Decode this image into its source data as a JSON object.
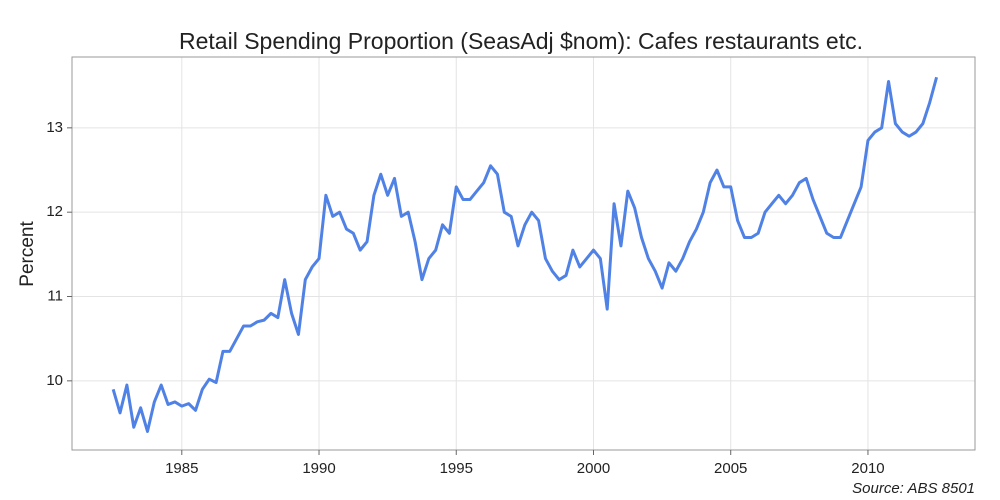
{
  "chart_data": {
    "type": "line",
    "title": "Retail Spending Proportion (SeasAdj $nom): Cafes restaurants etc.",
    "ylabel": "Percent",
    "caption": "Source: ABS 8501",
    "x": [
      1982.5,
      1982.75,
      1983,
      1983.25,
      1983.5,
      1983.75,
      1984,
      1984.25,
      1984.5,
      1984.75,
      1985,
      1985.25,
      1985.5,
      1985.75,
      1986,
      1986.25,
      1986.5,
      1986.75,
      1987,
      1987.25,
      1987.5,
      1987.75,
      1988,
      1988.25,
      1988.5,
      1988.75,
      1989,
      1989.25,
      1989.5,
      1989.75,
      1990,
      1990.25,
      1990.5,
      1990.75,
      1991,
      1991.25,
      1991.5,
      1991.75,
      1992,
      1992.25,
      1992.5,
      1992.75,
      1993,
      1993.25,
      1993.5,
      1993.75,
      1994,
      1994.25,
      1994.5,
      1994.75,
      1995,
      1995.25,
      1995.5,
      1995.75,
      1996,
      1996.25,
      1996.5,
      1996.75,
      1997,
      1997.25,
      1997.5,
      1997.75,
      1998,
      1998.25,
      1998.5,
      1998.75,
      1999,
      1999.25,
      1999.5,
      1999.75,
      2000,
      2000.25,
      2000.5,
      2000.75,
      2001,
      2001.25,
      2001.5,
      2001.75,
      2002,
      2002.25,
      2002.5,
      2002.75,
      2003,
      2003.25,
      2003.5,
      2003.75,
      2004,
      2004.25,
      2004.5,
      2004.75,
      2005,
      2005.25,
      2005.5,
      2005.75,
      2006,
      2006.25,
      2006.5,
      2006.75,
      2007,
      2007.25,
      2007.5,
      2007.75,
      2008,
      2008.25,
      2008.5,
      2008.75,
      2009,
      2009.25,
      2009.5,
      2009.75,
      2010,
      2010.25,
      2010.5,
      2010.75,
      2011,
      2011.25,
      2011.5,
      2011.75,
      2012,
      2012.25,
      2012.5
    ],
    "series": [
      {
        "name": "Cafes restaurants etc.",
        "color": "#5082e6",
        "values": [
          9.9,
          9.62,
          9.95,
          9.45,
          9.68,
          9.4,
          9.75,
          9.95,
          9.72,
          9.75,
          9.7,
          9.73,
          9.65,
          9.9,
          10.02,
          9.98,
          10.35,
          10.35,
          10.5,
          10.65,
          10.65,
          10.7,
          10.72,
          10.8,
          10.75,
          11.2,
          10.8,
          10.55,
          11.2,
          11.35,
          11.45,
          12.2,
          11.95,
          12.0,
          11.8,
          11.75,
          11.55,
          11.65,
          12.2,
          12.45,
          12.2,
          12.4,
          11.95,
          12.0,
          11.65,
          11.2,
          11.45,
          11.55,
          11.85,
          11.75,
          12.3,
          12.15,
          12.15,
          12.25,
          12.35,
          12.55,
          12.45,
          12.0,
          11.95,
          11.6,
          11.85,
          12.0,
          11.9,
          11.45,
          11.3,
          11.2,
          11.25,
          11.55,
          11.35,
          11.45,
          11.55,
          11.45,
          10.85,
          12.1,
          11.6,
          12.25,
          12.05,
          11.7,
          11.45,
          11.3,
          11.1,
          11.4,
          11.3,
          11.45,
          11.65,
          11.8,
          12.0,
          12.35,
          12.5,
          12.3,
          12.3,
          11.9,
          11.7,
          11.7,
          11.75,
          12.0,
          12.1,
          12.2,
          12.1,
          12.2,
          12.35,
          12.4,
          12.15,
          11.95,
          11.75,
          11.7,
          11.7,
          11.9,
          12.1,
          12.3,
          12.85,
          12.95,
          13.0,
          13.55,
          13.05,
          12.95,
          12.9,
          12.95,
          13.05,
          13.3,
          13.6
        ]
      }
    ],
    "xlim": [
      1981,
      2013.9
    ],
    "xticks": [
      1985,
      1990,
      1995,
      2000,
      2005,
      2010
    ],
    "ylim": [
      9.18,
      13.84
    ],
    "yticks": [
      10,
      11,
      12,
      13
    ],
    "grid": true
  }
}
